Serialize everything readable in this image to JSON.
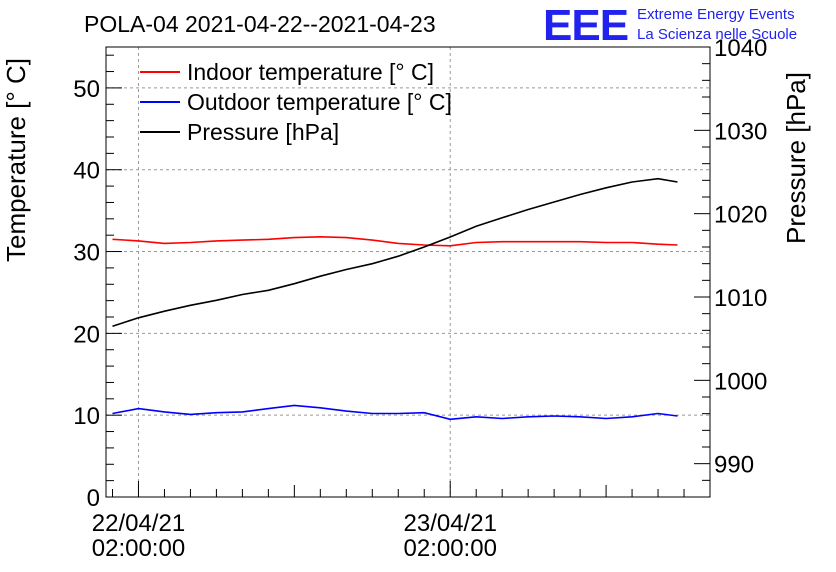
{
  "chart_data": {
    "type": "line",
    "title": "POLA-04 2021-04-22--2021-04-23",
    "ylabel": "Temperature [° C]",
    "y2label": "Pressure [hPa]",
    "xlabel": "",
    "ylim": [
      0,
      55
    ],
    "y2lim": [
      986,
      1040
    ],
    "yticks": [
      0,
      10,
      20,
      30,
      40,
      50
    ],
    "y2ticks": [
      990,
      1000,
      1010,
      1020,
      1030,
      1040
    ],
    "x_hours_range": [
      -2.5,
      44
    ],
    "xticks": [
      {
        "hours": 0,
        "line1": "22/04/21",
        "line2": "02:00:00"
      },
      {
        "hours": 24,
        "line1": "23/04/21",
        "line2": "02:00:00"
      }
    ],
    "grid": true,
    "legend_position": "top-left",
    "x_hours": [
      -2,
      0,
      2,
      4,
      6,
      8,
      10,
      12,
      14,
      16,
      18,
      20,
      22,
      24,
      26,
      28,
      30,
      32,
      34,
      36,
      38,
      40,
      41.5
    ],
    "series": [
      {
        "name": "Indoor temperature [° C]",
        "color": "#ff0000",
        "axis": "left",
        "values": [
          31.5,
          31.3,
          31.0,
          31.1,
          31.3,
          31.4,
          31.5,
          31.7,
          31.8,
          31.7,
          31.4,
          31.0,
          30.8,
          30.7,
          31.1,
          31.2,
          31.2,
          31.2,
          31.2,
          31.1,
          31.1,
          30.9,
          30.8
        ]
      },
      {
        "name": "Outdoor temperature [° C]",
        "color": "#0000ff",
        "axis": "left",
        "values": [
          10.2,
          10.8,
          10.4,
          10.1,
          10.3,
          10.4,
          10.8,
          11.2,
          10.9,
          10.5,
          10.2,
          10.2,
          10.3,
          9.5,
          9.8,
          9.6,
          9.8,
          9.9,
          9.8,
          9.6,
          9.8,
          10.2,
          9.9
        ]
      },
      {
        "name": "Pressure [hPa]",
        "color": "#000000",
        "axis": "right",
        "values": [
          1006.5,
          1007.5,
          1008.3,
          1009.0,
          1009.6,
          1010.3,
          1010.8,
          1011.6,
          1012.5,
          1013.3,
          1014.0,
          1014.9,
          1016.0,
          1017.2,
          1018.5,
          1019.5,
          1020.5,
          1021.4,
          1022.3,
          1023.1,
          1023.8,
          1024.2,
          1023.8
        ]
      }
    ]
  },
  "logo": {
    "mark": "EEE",
    "line1": "Extreme Energy Events",
    "line2": "La Scienza nelle Scuole",
    "color": "#2222ee"
  }
}
